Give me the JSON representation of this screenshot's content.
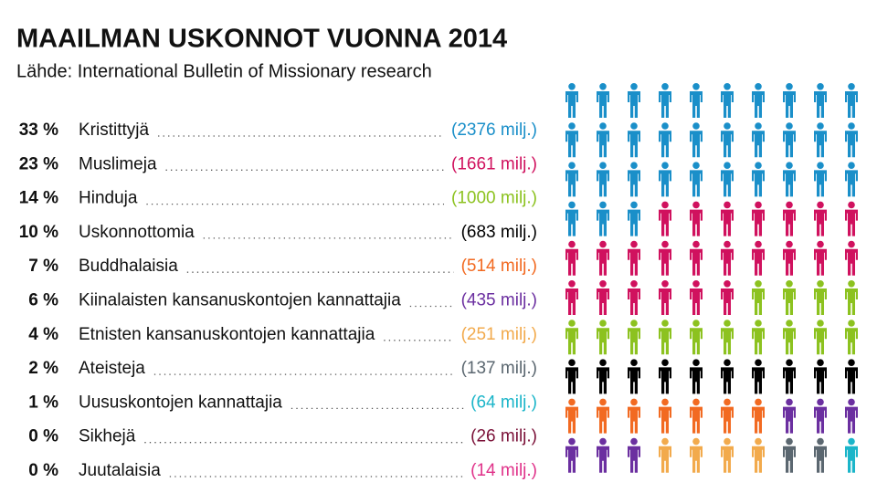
{
  "chart_data": {
    "type": "pictogram",
    "title": "MAAILMAN USKONNOT VUONNA 2014",
    "subtitle": "Lähde: International Bulletin of Missionary research",
    "categories": [
      "Kristittyjä",
      "Muslimeja",
      "Hinduja",
      "Uskonnottomia",
      "Buddhalaisia",
      "Kiinalaisten kansanuskontojen kannattajia",
      "Etnisten kansanuskontojen kannattajia",
      "Ateisteja",
      "Uususkontojen kannattajia",
      "Sikhejä",
      "Juutalaisia"
    ],
    "values": [
      33,
      23,
      14,
      10,
      7,
      6,
      4,
      2,
      1,
      0,
      0
    ],
    "value_labels": [
      "33 %",
      "23 %",
      "14 %",
      "10 %",
      "7 %",
      "6 %",
      "4 %",
      "2 %",
      "1 %",
      "0 %",
      "0 %"
    ],
    "millions": [
      2376,
      1661,
      1000,
      683,
      514,
      435,
      251,
      137,
      64,
      26,
      14
    ],
    "million_labels": [
      "(2376 milj.)",
      "(1661 milj.)",
      "(1000 milj.)",
      "(683 milj.)",
      "(514 milj.)",
      "(435 milj.)",
      "(251 milj.)",
      "(137 milj.)",
      "(64 milj.)",
      "(26 milj.)",
      "(14 milj.)"
    ],
    "colors": [
      "#1a8fc9",
      "#d0115e",
      "#8cc21f",
      "#000000",
      "#f26a21",
      "#6b2fa0",
      "#f2aa4c",
      "#5b6770",
      "#1bb5c9",
      "#7b1138",
      "#e0338a"
    ]
  }
}
